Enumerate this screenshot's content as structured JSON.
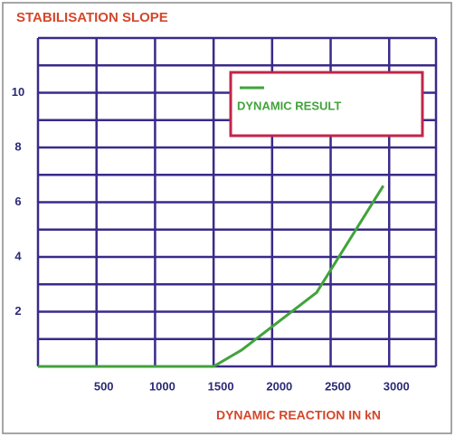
{
  "chart_data": {
    "type": "line",
    "title": "STABILISATION SLOPE",
    "x_label": "DYNAMIC REACTION IN kN",
    "x": [
      0,
      1500,
      1740,
      2380,
      2950
    ],
    "series": [
      {
        "name": "DYNAMIC RESULT",
        "color": "#41a33c",
        "values": [
          0,
          0,
          0.6,
          2.7,
          6.6
        ]
      }
    ],
    "xlim": [
      0,
      3400
    ],
    "xticks": [
      500,
      1000,
      1500,
      2000,
      2500,
      3000
    ],
    "ylim": [
      0,
      12
    ],
    "yticks": [
      2,
      4,
      6,
      8,
      10
    ],
    "xgrid": [
      0,
      500,
      1000,
      1500,
      2000,
      2500,
      3000,
      3400
    ],
    "ygrid": [
      0,
      1,
      2,
      3,
      4,
      5,
      6,
      7,
      8,
      9,
      10,
      11,
      12
    ],
    "grid_color": "#3a2a8a",
    "title_color": "#d4472b",
    "tick_color": "#2c2a78",
    "legend_border": "#c2254a"
  }
}
